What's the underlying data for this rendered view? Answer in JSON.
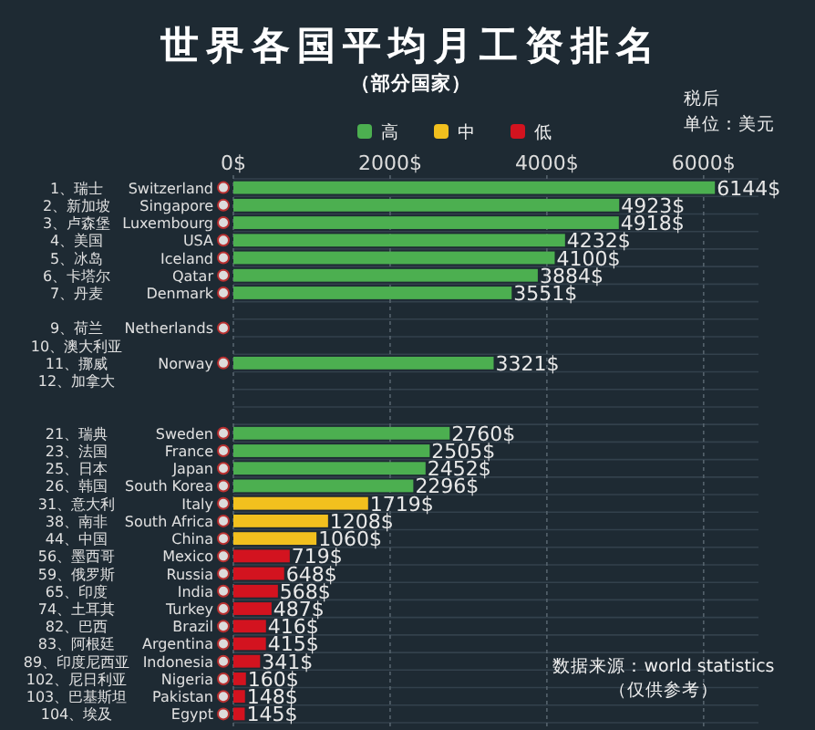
{
  "chart_data": {
    "type": "bar",
    "orientation": "horizontal",
    "stacked": true,
    "title": "世界各国平均月工资排名",
    "subtitle": "（部分国家）",
    "categories": [
      "Switzerland",
      "Singapore",
      "Luxembourg",
      "USA",
      "Iceland",
      "Qatar",
      "Denmark",
      null,
      "Netherlands",
      null,
      "Norway",
      null,
      null,
      null,
      "Sweden",
      "France",
      "Japan",
      "South Korea",
      "Italy",
      "South Africa",
      "China",
      "Mexico",
      "Russia",
      "India",
      "Turkey",
      "Brazil",
      "Argentina",
      "Indonesia",
      "Nigeria",
      "Pakistan",
      "Egypt"
    ],
    "y2_categories": [
      "1、瑞士",
      "2、新加坡",
      "3、卢森堡",
      "4、美国",
      "5、冰岛",
      "6、卡塔尔",
      "7、丹麦",
      null,
      "9、荷兰",
      "10、澳大利亚",
      "11、挪威",
      "12、加拿大",
      null,
      null,
      "21、瑞典",
      "23、法国",
      "25、日本",
      "26、韩国",
      "31、意大利",
      "38、南非",
      "44、中国",
      "56、墨西哥",
      "59、俄罗斯",
      "65、印度",
      "74、土耳其",
      "82、巴西",
      "83、阿根廷",
      "89、印度尼西亚",
      "102、尼日利亚",
      "103、巴基斯坦",
      "104、埃及"
    ],
    "series": [
      {
        "name": "高",
        "color": "#4caf50",
        "values": [
          6144,
          4923,
          4918,
          4232,
          4100,
          3884,
          3551,
          null,
          null,
          null,
          3321,
          null,
          null,
          null,
          2760,
          2505,
          2452,
          2296,
          null,
          null,
          null,
          null,
          null,
          null,
          null,
          null,
          null,
          null,
          null,
          null,
          null
        ],
        "value_labels": [
          "6144$",
          "4923$",
          "4918$",
          "4232$",
          "4100$",
          "3884$",
          "3551$",
          null,
          null,
          null,
          "3321$",
          null,
          null,
          null,
          "2760$",
          "2505$",
          "2452$",
          "2296$",
          null,
          null,
          null,
          null,
          null,
          null,
          null,
          null,
          null,
          null,
          null,
          null,
          null
        ]
      },
      {
        "name": "中",
        "color": "#f2c01e",
        "values": [
          null,
          null,
          null,
          null,
          null,
          null,
          null,
          null,
          null,
          null,
          null,
          null,
          null,
          null,
          null,
          null,
          null,
          null,
          1719,
          1208,
          1060,
          null,
          null,
          null,
          null,
          null,
          null,
          null,
          null,
          null,
          null
        ],
        "value_labels": [
          null,
          null,
          null,
          null,
          null,
          null,
          null,
          null,
          null,
          null,
          null,
          null,
          null,
          null,
          null,
          null,
          null,
          null,
          "1719$",
          "1208$",
          "1060$",
          null,
          null,
          null,
          null,
          null,
          null,
          null,
          null,
          null,
          null
        ]
      },
      {
        "name": "低",
        "color": "#d3131f",
        "values": [
          null,
          null,
          null,
          null,
          null,
          null,
          null,
          null,
          null,
          null,
          null,
          null,
          null,
          null,
          null,
          null,
          null,
          null,
          null,
          null,
          null,
          719,
          648,
          568,
          487,
          416,
          415,
          341,
          160,
          148,
          145
        ],
        "value_labels": [
          null,
          null,
          null,
          null,
          null,
          null,
          null,
          null,
          null,
          null,
          null,
          null,
          null,
          null,
          null,
          null,
          null,
          null,
          null,
          null,
          null,
          "719$",
          "648$",
          "568$",
          "487$",
          "416$",
          "415$",
          "341$",
          "160$",
          "148$",
          "145$"
        ]
      }
    ],
    "xlim": [
      0,
      6700
    ],
    "xticks": [
      {
        "value": 0,
        "label": "0$"
      },
      {
        "value": 2000,
        "label": "2000$"
      },
      {
        "value": 4000,
        "label": "4000$"
      },
      {
        "value": 6000,
        "label": "6000$"
      }
    ],
    "grid": true,
    "legend": "top",
    "annotations": [
      "税后",
      "单位：美元",
      "数据来源：world statistics",
      "（仅供参考）"
    ]
  }
}
